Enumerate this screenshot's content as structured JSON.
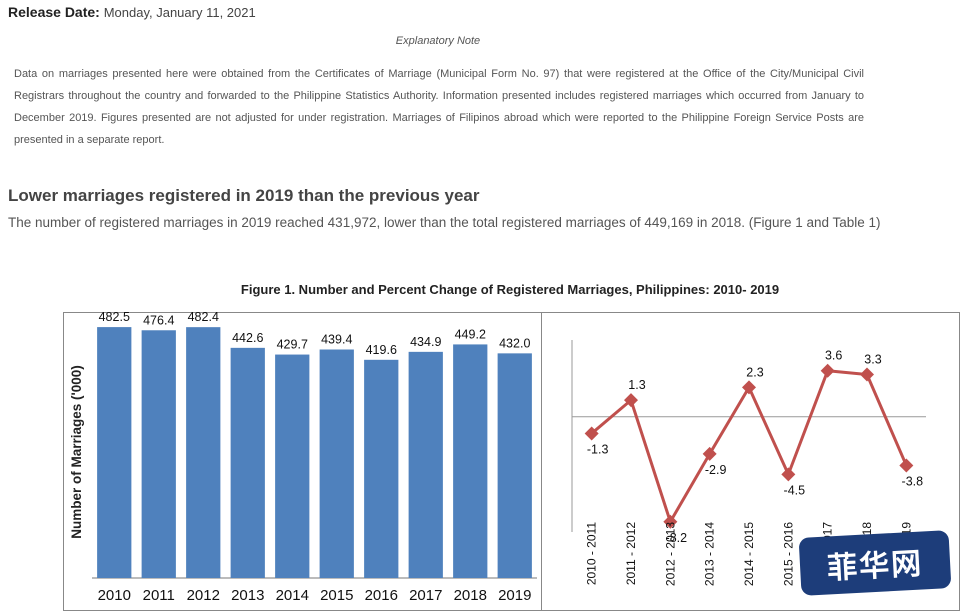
{
  "release": {
    "label": "Release Date:",
    "date": "Monday, January 11, 2021"
  },
  "note": {
    "title": "Explanatory Note",
    "text": "Data on marriages presented here were obtained from the Certificates of Marriage (Municipal Form No. 97) that were registered at the Office of the City/Municipal Civil Registrars throughout the country and forwarded to the Philippine Statistics Authority. Information presented includes registered marriages which occurred from January to December 2019. Figures presented are not adjusted for under registration. Marriages of Filipinos abroad which were reported to the Philippine Foreign Service Posts are presented in a separate report."
  },
  "headline": "Lower marriages registered in 2019 than the previous year",
  "lead": "The number of registered marriages in 2019 reached 431,972, lower than the total registered marriages of 449,169 in 2018. (Figure 1 and Table 1)",
  "figure_title": "Figure 1. Number and Percent Change of Registered Marriages, Philippines: 2010- 2019",
  "badge": "菲华网",
  "colors": {
    "bar": "#4f81bd",
    "line": "#c0504d"
  },
  "chart_data": [
    {
      "type": "bar",
      "categories": [
        "2010",
        "2011",
        "2012",
        "2013",
        "2014",
        "2015",
        "2016",
        "2017",
        "2018",
        "2019"
      ],
      "values": [
        482.5,
        476.4,
        482.4,
        442.6,
        429.7,
        439.4,
        419.6,
        434.9,
        449.2,
        432.0
      ],
      "labels": [
        "482.5",
        "476.4",
        "482.4",
        "442.6",
        "429.7",
        "439.4",
        "419.6",
        "434.9",
        "449.2",
        "432.0"
      ],
      "ylabel": "Number of Marriages ('000)",
      "ylim": [
        0,
        500
      ]
    },
    {
      "type": "line",
      "categories": [
        "2010 - 2011",
        "2011 - 2012",
        "2012 - 2013",
        "2013 - 2014",
        "2014 - 2015",
        "2015 - 2016",
        "2016 - 2017",
        "2017 - 2018",
        "2018 - 2019"
      ],
      "values": [
        -1.3,
        1.3,
        -8.2,
        -2.9,
        2.3,
        -4.5,
        3.6,
        3.3,
        -3.8
      ],
      "labels": [
        "-1.3",
        "1.3",
        "-8.2",
        "-2.9",
        "2.3",
        "-4.5",
        "3.6",
        "3.3",
        "-3.8"
      ],
      "ylim": [
        -9,
        6
      ]
    }
  ]
}
